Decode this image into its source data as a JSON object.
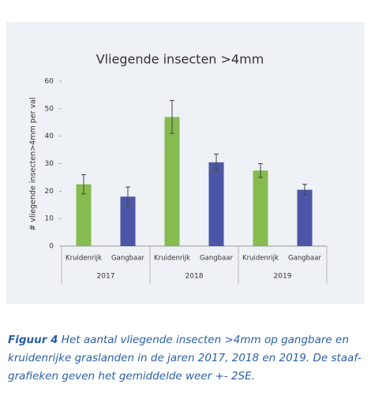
{
  "chart_data": {
    "type": "bar",
    "title": "Vliegende insecten >4mm",
    "y_label": "# vliegende insecten>4mm per val",
    "categories": [
      "Kruidenrijk",
      "Gangbaar",
      "Kruidenrijk",
      "Gangbaar",
      "Kruidenrijk",
      "Gangbaar"
    ],
    "groups": [
      "2017",
      "2018",
      "2019"
    ],
    "values": [
      22.5,
      18,
      47,
      30.5,
      27.5,
      20.5
    ],
    "errors": [
      3.5,
      3.5,
      6,
      3,
      2.5,
      2
    ],
    "colors": [
      "#86bc4f",
      "#4b57a6",
      "#86bc4f",
      "#4b57a6",
      "#86bc4f",
      "#4b57a6"
    ],
    "ylim": [
      0,
      60
    ],
    "yticks": [
      0,
      10,
      20,
      30,
      40,
      50,
      60
    ],
    "grid": false
  },
  "caption": {
    "label": "Figuur 4",
    "lines": [
      "Het aantal vliegende insecten >4mm op gangbare en",
      "kruidenrijke graslanden in de jaren 2017, 2018 en 2019. De staaf-",
      "grafieken geven het gemiddelde weer +- 2SE."
    ]
  }
}
